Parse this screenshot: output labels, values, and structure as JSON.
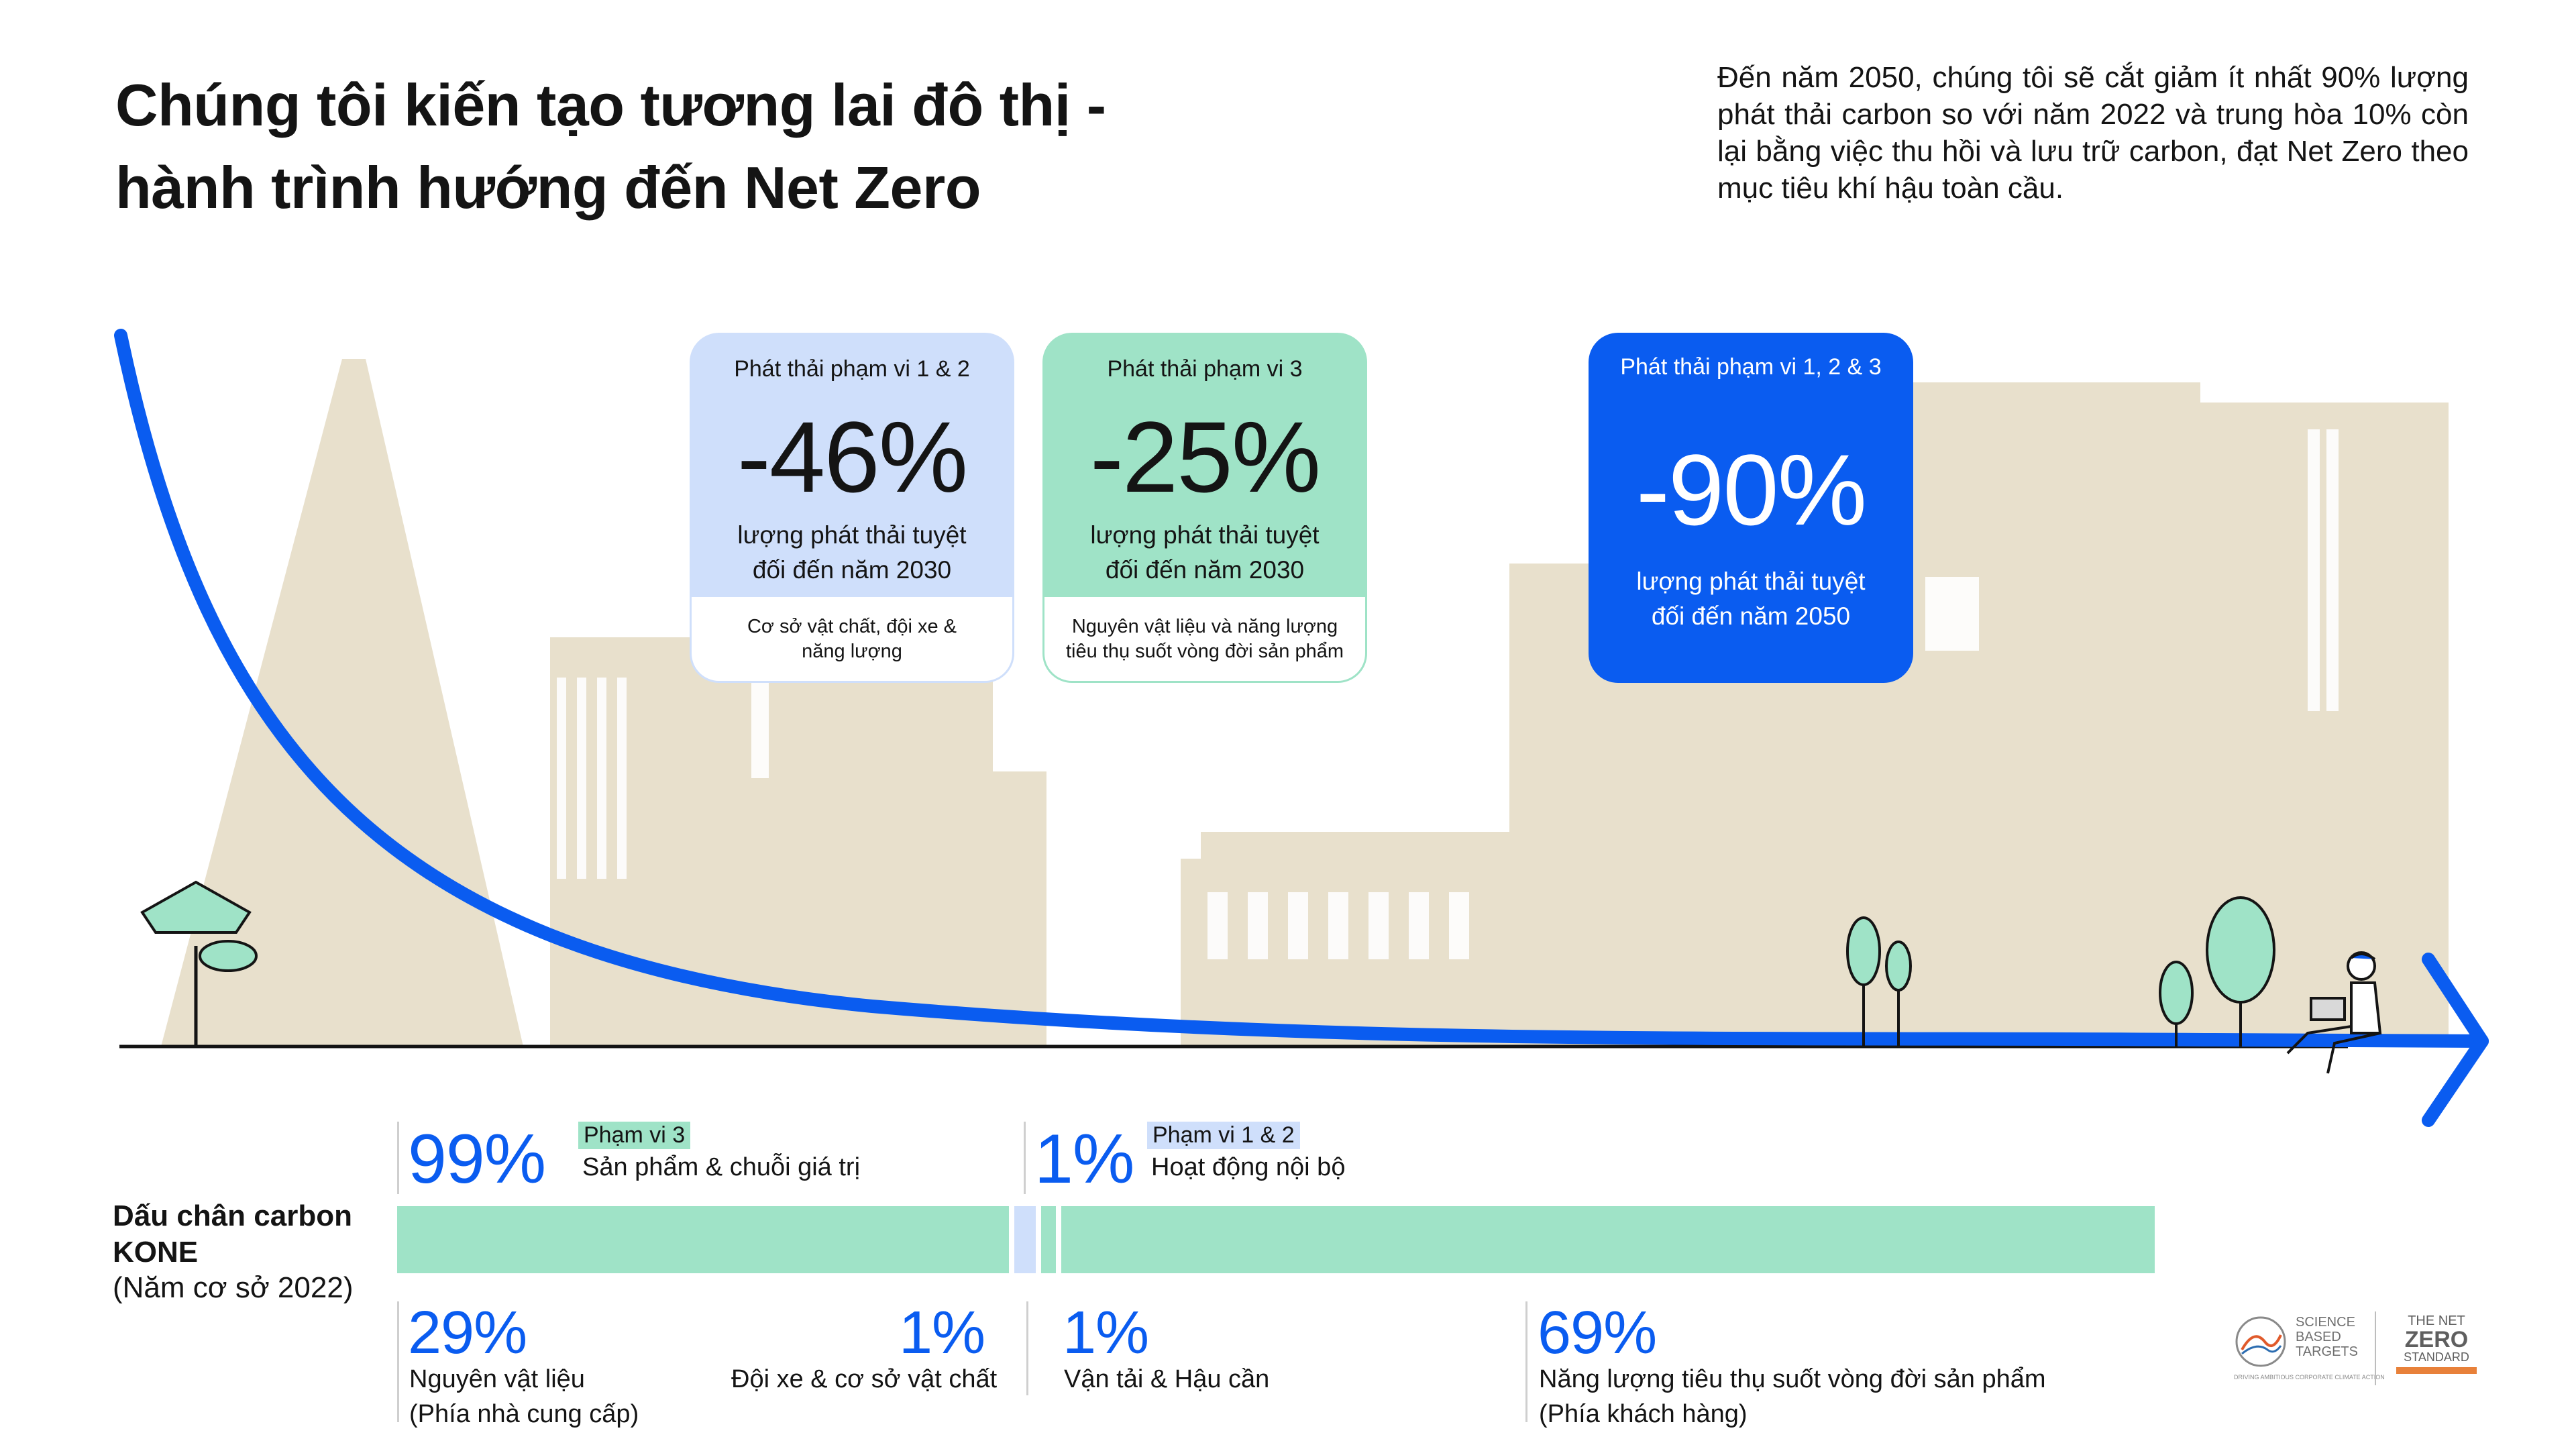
{
  "title": "Chúng tôi kiến tạo tương lai đô thị - hành trình hướng đến Net Zero",
  "intro": "Đến năm 2050, chúng tôi sẽ cắt giảm ít nhất 90% lượng phát thải carbon so với năm 2022 và trung hòa 10% còn lại bằng việc thu hồi và lưu trữ carbon, đạt Net Zero theo mục tiêu khí hậu toàn cầu.",
  "colors": {
    "accent_blue": "#0a5cf0",
    "mint": "#9fe3c7",
    "light_blue": "#cfdffb",
    "building_beige": "#e8e0cc",
    "tree_green": "#9fe3c7"
  },
  "targets": [
    {
      "scope": "Phát thải phạm vi 1 & 2",
      "value": "-46%",
      "description": "lượng phát thải tuyệt đối đến năm 2030",
      "note": "Cơ sở vật chất, đội xe & năng lượng"
    },
    {
      "scope": "Phát thải phạm vi 3",
      "value": "-25%",
      "description": "lượng phát thải tuyệt đối đến năm 2030",
      "note": "Nguyên vật liệu và năng lượng tiêu thụ suốt vòng đời sản phẩm"
    },
    {
      "scope": "Phát thải phạm vi 1, 2 & 3",
      "value": "-90%",
      "description": "lượng phát thải tuyệt đối đến năm 2050"
    }
  ],
  "footprint": {
    "label_line1": "Dấu chân carbon",
    "label_line2": "KONE",
    "label_line3": "(Năm cơ sở 2022)",
    "scope3": {
      "value": "99%",
      "tag": "Phạm vi 3",
      "label": "Sản phẩm & chuỗi giá trị"
    },
    "scope12": {
      "value": "1%",
      "tag": "Phạm vi 1 & 2",
      "label": "Hoạt động nội bộ"
    },
    "segments": [
      {
        "value": "29%",
        "label": "Nguyên vật liệu",
        "sub": "(Phía nhà cung cấp)",
        "share": 29,
        "color": "#9fe3c7"
      },
      {
        "value": "1%",
        "label": "Đội xe & cơ sở vật chất",
        "share": 1,
        "color": "#cfdffb"
      },
      {
        "value": "1%",
        "label": "Vận tải & Hậu cần",
        "share": 1,
        "color": "#9fe3c7"
      },
      {
        "value": "69%",
        "label": "Năng lượng tiêu thụ suốt vòng đời sản phẩm",
        "sub": "(Phía khách hàng)",
        "share": 69,
        "color": "#9fe3c7"
      }
    ]
  },
  "logos": {
    "sbt": "SCIENCE BASED TARGETS",
    "sbt_tagline": "DRIVING AMBITIOUS CORPORATE CLIMATE ACTION",
    "netzero_line1": "THE NET",
    "netzero_line2": "ZERO",
    "netzero_line3": "STANDARD"
  }
}
